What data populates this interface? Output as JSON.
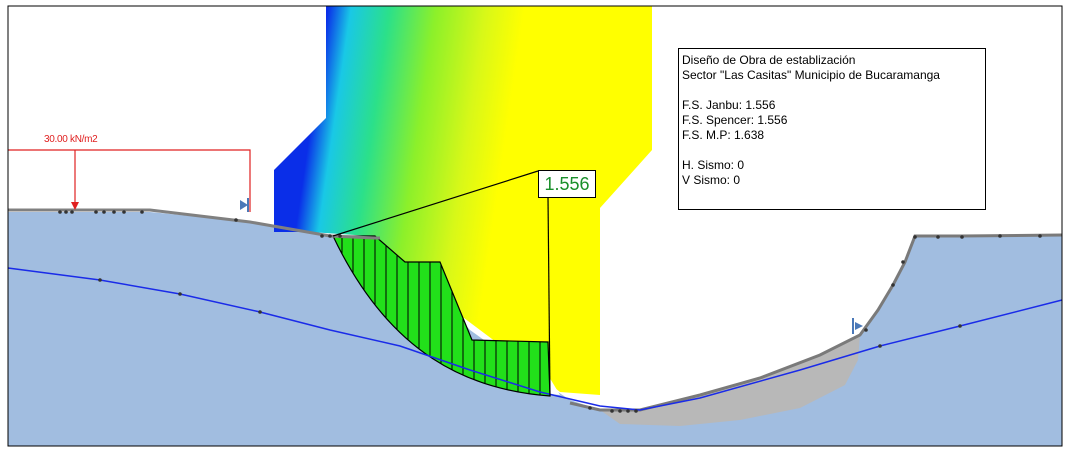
{
  "load": {
    "label": "30.00 kN/m2"
  },
  "critical_surface": {
    "fs_label": "1.556"
  },
  "info": {
    "title_line1": "Diseño de Obra de establización",
    "title_line2": "Sector \"Las Casitas\" Municipio de Bucaramanga",
    "fs_janbu": "F.S. Janbu: 1.556",
    "fs_spencer": "F.S. Spencer: 1.556",
    "fs_mp": "F.S. M.P: 1.638",
    "h_sismo": "H. Sismo: 0",
    "v_sismo": "V Sismo: 0"
  },
  "colors": {
    "soil": "#a1bde0",
    "fill": "#b8b8b8",
    "slip_mass": "#22e01a",
    "water_line": "#1a2be8",
    "load": "#e02020",
    "contour_blue": "#0a2ee8",
    "contour_yellow": "#ffff00"
  }
}
